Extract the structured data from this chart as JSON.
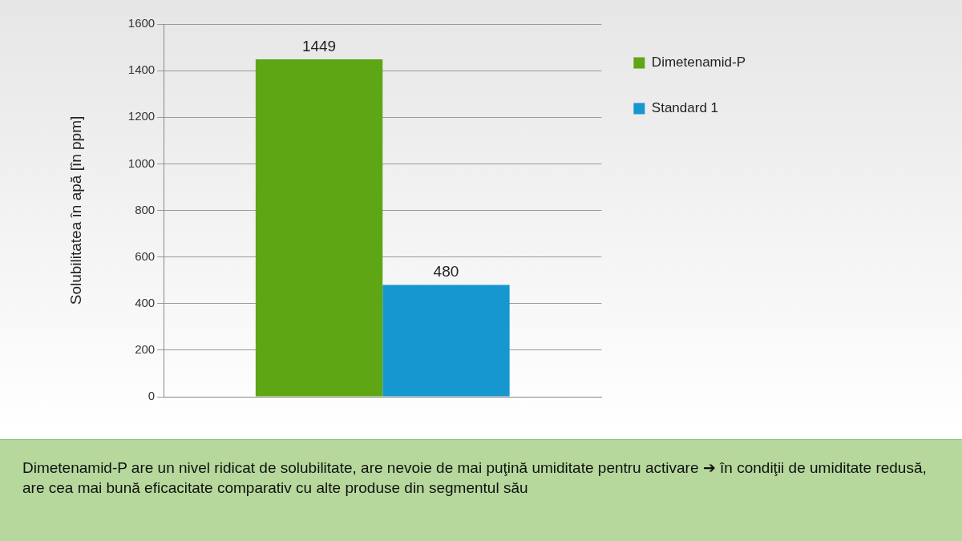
{
  "chart_data": {
    "type": "bar",
    "ylabel": "Solubilitatea în apă [în ppm]",
    "categories": [
      null
    ],
    "series": [
      {
        "name": "Dimetenamid-P",
        "color": "#5ea614",
        "values": [
          1449
        ]
      },
      {
        "name": "Standard 1",
        "color": "#1797cf",
        "values": [
          480
        ]
      }
    ],
    "ylim": [
      0,
      1600
    ],
    "yticks": [
      0,
      200,
      400,
      600,
      800,
      1000,
      1200,
      1400,
      1600
    ],
    "grid": "y",
    "legend": "right",
    "data_labels": true,
    "annotations": [
      "Dimetenamid-P are un nivel ridicat de solubilitate, are nevoie de mai puţină umiditate pentru activare ➔ în condiţii de umiditate redusă, are cea mai bună eficacitate comparativ cu alte produse din segmentul său"
    ]
  }
}
